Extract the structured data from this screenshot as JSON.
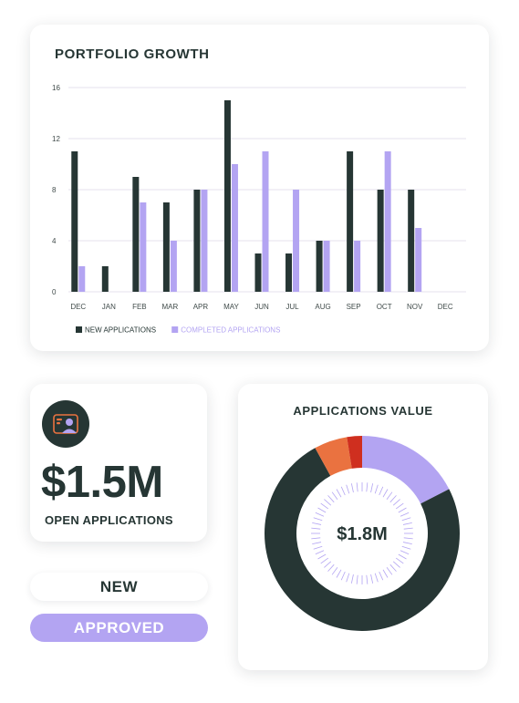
{
  "portfolio": {
    "title": "PORTFOLIO GROWTH"
  },
  "chart_data": {
    "type": "bar",
    "title": "PORTFOLIO GROWTH",
    "categories": [
      "DEC",
      "JAN",
      "FEB",
      "MAR",
      "APR",
      "MAY",
      "JUN",
      "JUL",
      "AUG",
      "SEP",
      "OCT",
      "NOV",
      "DEC"
    ],
    "series": [
      {
        "name": "NEW APPLICATIONS",
        "color": "#263634",
        "values": [
          11,
          2,
          9,
          7,
          8,
          15,
          3,
          3,
          4,
          11,
          8,
          8,
          0
        ]
      },
      {
        "name": "COMPLETED APPLICATIONS",
        "color": "#b3a4f2",
        "values": [
          2,
          0,
          7,
          4,
          8,
          10,
          11,
          8,
          4,
          4,
          11,
          5,
          0
        ]
      }
    ],
    "yticks": [
      "0",
      "4",
      "8",
      "12",
      "16"
    ],
    "ylim": [
      0,
      16
    ],
    "grid": true,
    "legend": "bottom-left"
  },
  "open_applications": {
    "amount": "$1.5M",
    "label": "OPEN APPLICATIONS",
    "icon": "applicant-card-icon"
  },
  "status_pills": {
    "new": "NEW",
    "approved": "APPROVED"
  },
  "applications_value": {
    "title": "APPLICATIONS VALUE",
    "center_value": "$1.8M",
    "segments": [
      {
        "color": "#b3a4f2",
        "fraction": 0.175
      },
      {
        "color": "#263634",
        "fraction": 0.745
      },
      {
        "color": "#ea7240",
        "fraction": 0.055
      },
      {
        "color": "#cf2f1f",
        "fraction": 0.025
      }
    ]
  },
  "colors": {
    "dark": "#263634",
    "lavender": "#b3a4f2",
    "orange": "#ea7240",
    "red": "#cf2f1f"
  }
}
